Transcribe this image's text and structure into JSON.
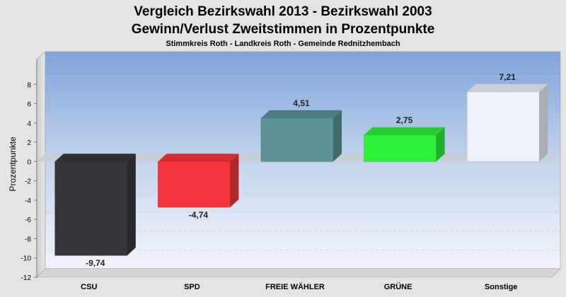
{
  "chart_data": {
    "type": "bar",
    "title": "Vergleich Bezirkswahl 2013 - Bezirkswahl 2003",
    "subtitle": "Gewinn/Verlust Zweitstimmen in Prozentpunkte",
    "subsubtitle": "Stimmkreis Roth - Landkreis Roth - Gemeinde Rednitzhembach",
    "ylabel": "Prozentpunkte",
    "ylim": [
      -12,
      10
    ],
    "yticks": [
      8,
      6,
      4,
      2,
      0,
      -2,
      -4,
      -6,
      -8,
      -10,
      -12
    ],
    "categories": [
      "CSU",
      "SPD",
      "FREIE WÄHLER",
      "GRÜNE",
      "Sonstige"
    ],
    "values": [
      -9.74,
      -4.74,
      4.51,
      2.75,
      7.21
    ],
    "value_labels": [
      "-9,74",
      "-4,74",
      "4,51",
      "2,75",
      "7,21"
    ],
    "colors": [
      "#36373b",
      "#f5363c",
      "#5b9397",
      "#2ef23a",
      "#eef2fa"
    ],
    "grid": true
  }
}
